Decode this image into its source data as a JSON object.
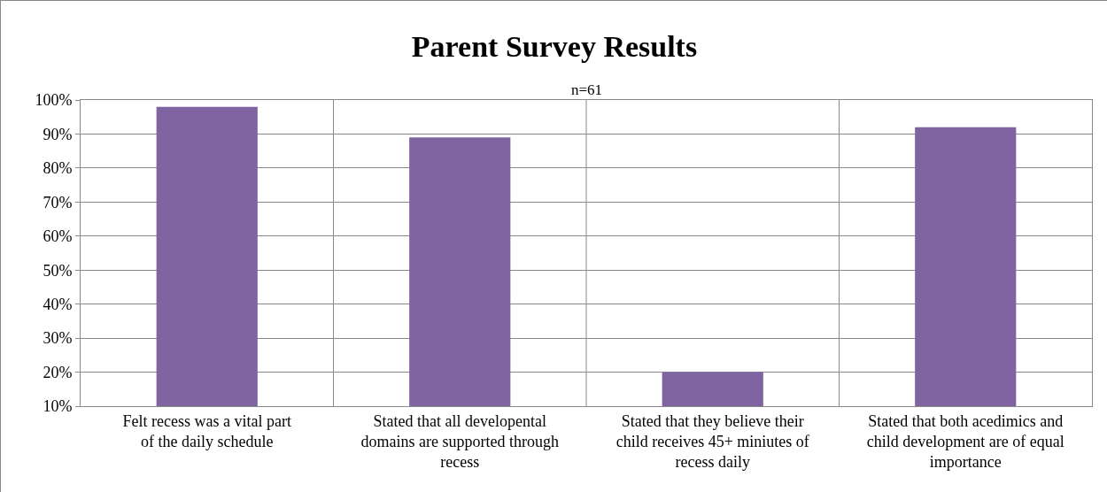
{
  "chart_data": {
    "type": "bar",
    "title": "Parent Survey Results",
    "subtitle": "n=61",
    "categories": [
      "Felt recess was a vital part of the daily schedule",
      "Stated that all developental domains are supported through recess",
      "Stated that they believe their child receives 45+ miniutes of recess daily",
      "Stated that both acedimics and child development are of equal importance"
    ],
    "values": [
      98,
      89,
      20,
      92
    ],
    "color": "#8064a2",
    "ylim": [
      10,
      100
    ],
    "yticks": [
      {
        "value": 10,
        "label": "10%"
      },
      {
        "value": 20,
        "label": "20%"
      },
      {
        "value": 30,
        "label": "30%"
      },
      {
        "value": 40,
        "label": "40%"
      },
      {
        "value": 50,
        "label": "50%"
      },
      {
        "value": 60,
        "label": "60%"
      },
      {
        "value": 70,
        "label": "70%"
      },
      {
        "value": 80,
        "label": "80%"
      },
      {
        "value": 90,
        "label": "90%"
      },
      {
        "value": 100,
        "label": "100%"
      }
    ],
    "grid": true
  }
}
